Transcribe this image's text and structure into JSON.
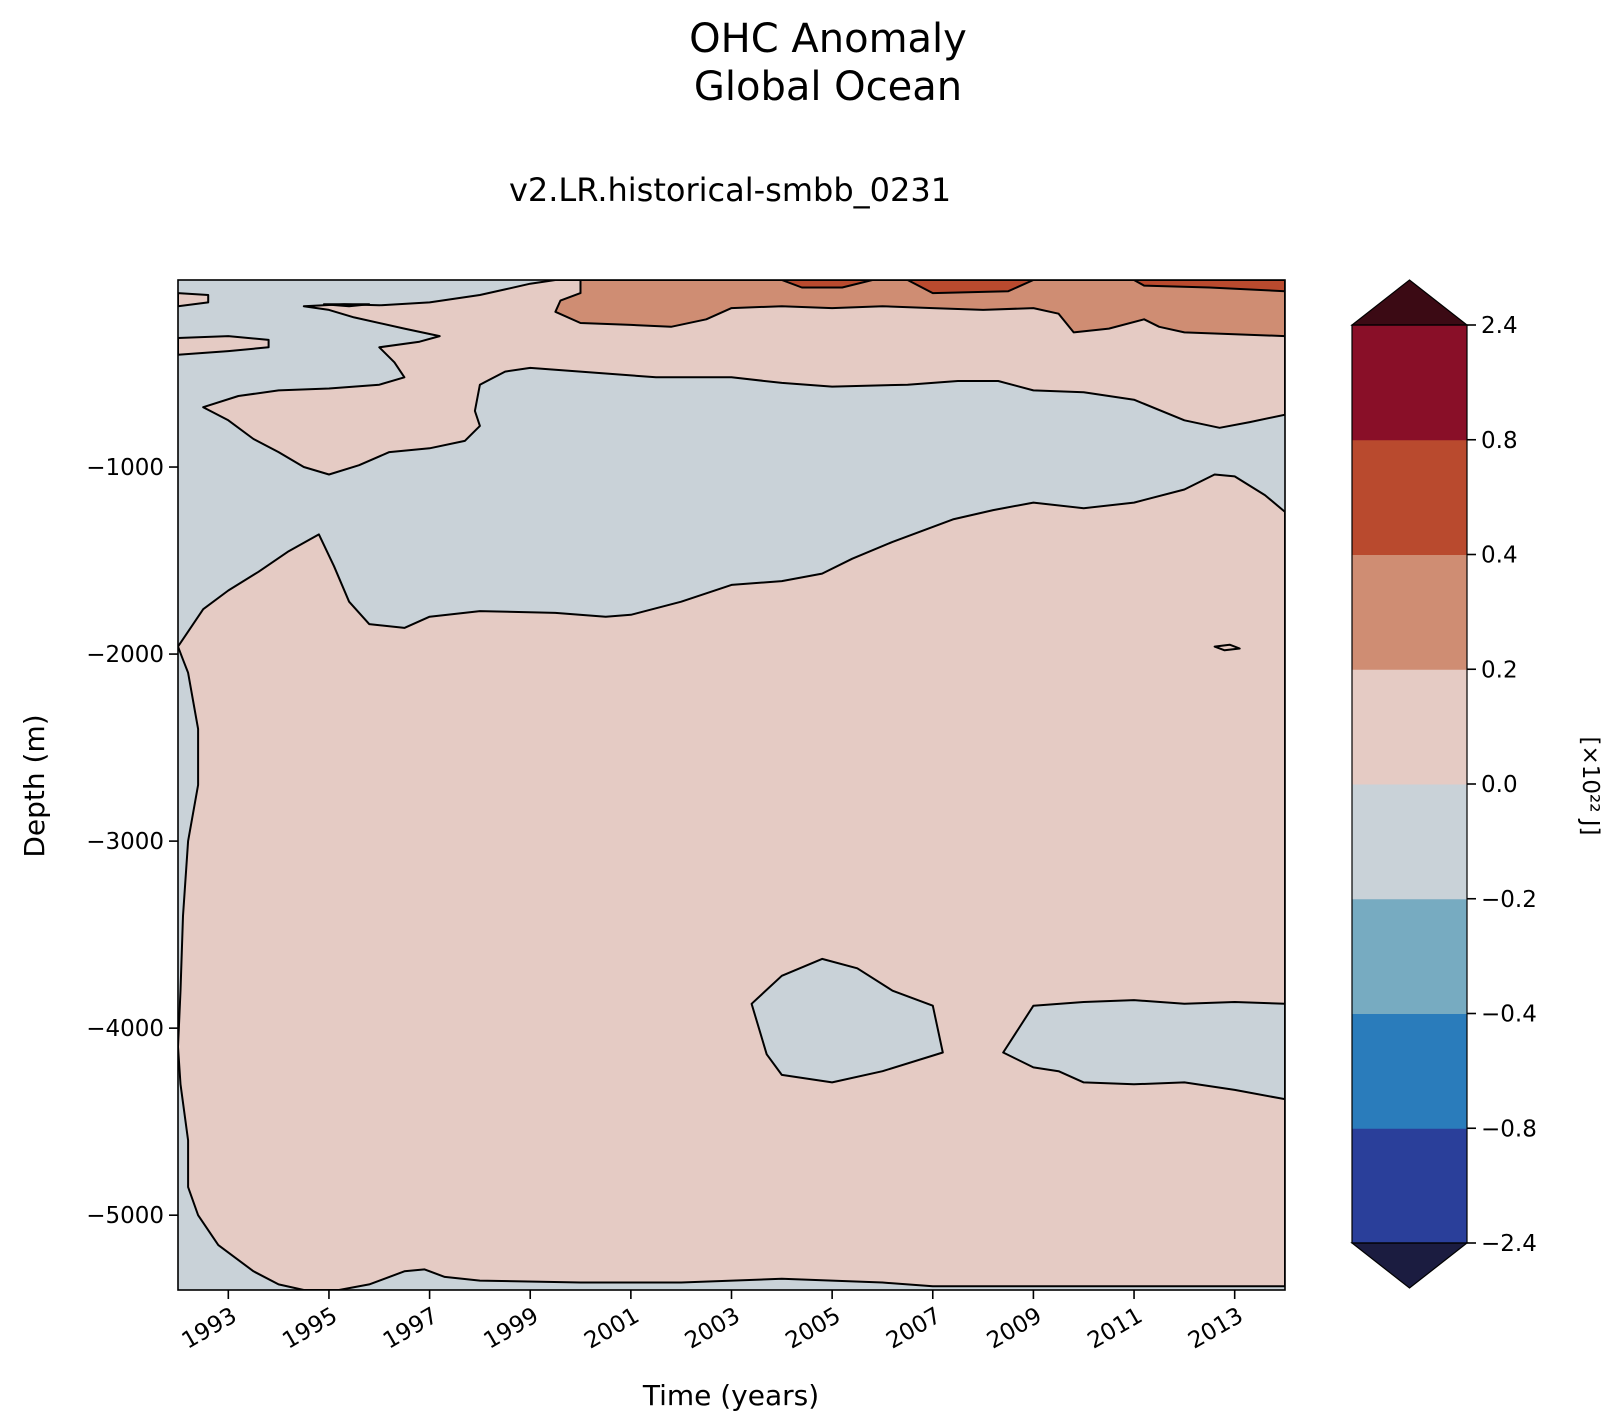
{
  "chart_data": {
    "type": "heatmap",
    "title": [
      "OHC Anomaly",
      "Global Ocean"
    ],
    "subtitle": "v2.LR.historical-smbb_0231",
    "xlabel": "Time (years)",
    "ylabel": "Depth (m)",
    "xlim": [
      1992.0,
      2014.0
    ],
    "ylim": [
      -5400,
      0
    ],
    "x_ticks": [
      1993,
      1995,
      1997,
      1999,
      2001,
      2003,
      2005,
      2007,
      2009,
      2011,
      2013
    ],
    "x_tick_labels": [
      "1993",
      "1995",
      "1997",
      "1999",
      "2001",
      "2003",
      "2005",
      "2007",
      "2009",
      "2011",
      "2013"
    ],
    "y_ticks": [
      -1000,
      -2000,
      -3000,
      -4000,
      -5000
    ],
    "y_tick_labels": [
      "−1000",
      "−2000",
      "−3000",
      "−4000",
      "−5000"
    ],
    "contour_levels": [
      -2.4,
      -0.8,
      -0.4,
      -0.2,
      0.0,
      0.2,
      0.4,
      0.8,
      2.4
    ],
    "colorbar": {
      "label": "[×10²² J]",
      "ticks": [
        -2.4,
        -0.8,
        -0.4,
        -0.2,
        0.0,
        0.2,
        0.4,
        0.8,
        2.4
      ],
      "tick_labels": [
        "−2.4",
        "−0.8",
        "−0.4",
        "−0.2",
        "0.0",
        "0.2",
        "0.4",
        "0.8",
        "2.4"
      ],
      "colors": [
        "#2a3f9a",
        "#2a7cbb",
        "#77abc1",
        "#c9d2d8",
        "#e5cbc4",
        "#cf8d73",
        "#b94a2e",
        "#890f28"
      ],
      "under_color": "#1b1c40",
      "over_color": "#3b0a14"
    },
    "regions": [
      {
        "band": "-0.2 to 0.0",
        "description": "background / shallow-left and mid-depth band",
        "polygon": [
          [
            1992.0,
            0
          ],
          [
            1992.0,
            -5400
          ],
          [
            2014.0,
            -5400
          ],
          [
            2014.0,
            0
          ]
        ]
      },
      {
        "band": "0.0 to 0.2",
        "description": "deep positive body",
        "polygon": [
          [
            1992.0,
            -1960
          ],
          [
            1992.1,
            -2030
          ],
          [
            1992.2,
            -2100
          ],
          [
            1992.4,
            -2400
          ],
          [
            1992.4,
            -2700
          ],
          [
            1992.2,
            -3000
          ],
          [
            1992.1,
            -3400
          ],
          [
            1992.05,
            -3800
          ],
          [
            1992.0,
            -4100
          ],
          [
            1992.05,
            -4300
          ],
          [
            1992.2,
            -4600
          ],
          [
            1992.2,
            -4850
          ],
          [
            1992.4,
            -5000
          ],
          [
            1992.8,
            -5160
          ],
          [
            1993.5,
            -5300
          ],
          [
            1994.0,
            -5370
          ],
          [
            1994.5,
            -5400
          ],
          [
            1995.2,
            -5400
          ],
          [
            1995.8,
            -5370
          ],
          [
            1996.5,
            -5300
          ],
          [
            1996.9,
            -5290
          ],
          [
            1997.3,
            -5330
          ],
          [
            1998.0,
            -5350
          ],
          [
            2000.0,
            -5360
          ],
          [
            2002.0,
            -5360
          ],
          [
            2004.0,
            -5340
          ],
          [
            2005.0,
            -5350
          ],
          [
            2006.0,
            -5360
          ],
          [
            2007.0,
            -5380
          ],
          [
            2014.0,
            -5380
          ],
          [
            2014.0,
            -1240
          ],
          [
            2013.6,
            -1150
          ],
          [
            2013.0,
            -1050
          ],
          [
            2012.6,
            -1040
          ],
          [
            2012.0,
            -1120
          ],
          [
            2011.0,
            -1190
          ],
          [
            2010.0,
            -1220
          ],
          [
            2009.0,
            -1190
          ],
          [
            2008.2,
            -1230
          ],
          [
            2007.4,
            -1280
          ],
          [
            2006.2,
            -1400
          ],
          [
            2005.4,
            -1490
          ],
          [
            2004.8,
            -1570
          ],
          [
            2004.0,
            -1610
          ],
          [
            2003.0,
            -1630
          ],
          [
            2002.0,
            -1720
          ],
          [
            2001.0,
            -1790
          ],
          [
            2000.5,
            -1800
          ],
          [
            1999.5,
            -1780
          ],
          [
            1998.0,
            -1770
          ],
          [
            1997.0,
            -1800
          ],
          [
            1996.5,
            -1860
          ],
          [
            1995.8,
            -1840
          ],
          [
            1995.4,
            -1720
          ],
          [
            1995.1,
            -1530
          ],
          [
            1994.8,
            -1360
          ],
          [
            1994.2,
            -1450
          ],
          [
            1993.6,
            -1560
          ],
          [
            1993.0,
            -1660
          ],
          [
            1992.5,
            -1760
          ],
          [
            1992.0,
            -1960
          ]
        ]
      },
      {
        "band": "-0.2 to 0.0",
        "description": "deep negative pocket around 2004",
        "polygon": [
          [
            2003.4,
            -3870
          ],
          [
            2004.0,
            -3720
          ],
          [
            2004.8,
            -3630
          ],
          [
            2005.5,
            -3680
          ],
          [
            2006.2,
            -3800
          ],
          [
            2007.0,
            -3880
          ],
          [
            2007.2,
            -4130
          ],
          [
            2006.0,
            -4230
          ],
          [
            2005.0,
            -4290
          ],
          [
            2004.0,
            -4250
          ],
          [
            2003.7,
            -4140
          ],
          [
            2003.4,
            -3870
          ]
        ]
      },
      {
        "band": "-0.2 to 0.0",
        "description": "deep negative pocket 2008-2014",
        "polygon": [
          [
            2008.4,
            -4130
          ],
          [
            2009.0,
            -3880
          ],
          [
            2010.0,
            -3860
          ],
          [
            2011.0,
            -3850
          ],
          [
            2012.0,
            -3870
          ],
          [
            2013.0,
            -3860
          ],
          [
            2014.0,
            -3870
          ],
          [
            2014.0,
            -4380
          ],
          [
            2013.0,
            -4330
          ],
          [
            2012.0,
            -4290
          ],
          [
            2011.0,
            -4300
          ],
          [
            2010.0,
            -4290
          ],
          [
            2009.5,
            -4230
          ],
          [
            2009.0,
            -4210
          ],
          [
            2008.4,
            -4130
          ]
        ]
      },
      {
        "band": "0.0 to 0.2",
        "description": "upper positive band",
        "polygon": [
          [
            1992.5,
            -680
          ],
          [
            1993.2,
            -620
          ],
          [
            1994.0,
            -590
          ],
          [
            1995.0,
            -580
          ],
          [
            1996.0,
            -560
          ],
          [
            1996.5,
            -520
          ],
          [
            1996.3,
            -440
          ],
          [
            1996.0,
            -360
          ],
          [
            1996.8,
            -330
          ],
          [
            1997.2,
            -300
          ],
          [
            1996.5,
            -260
          ],
          [
            1995.5,
            -200
          ],
          [
            1995.0,
            -160
          ],
          [
            1994.5,
            -140
          ],
          [
            1995.3,
            -130
          ],
          [
            1996.0,
            -135
          ],
          [
            1997.0,
            -120
          ],
          [
            1998.0,
            -80
          ],
          [
            1998.5,
            -50
          ],
          [
            1999.0,
            -20
          ],
          [
            1999.5,
            0
          ],
          [
            2014.0,
            0
          ],
          [
            2014.0,
            -720
          ],
          [
            2013.3,
            -760
          ],
          [
            2012.7,
            -790
          ],
          [
            2012.0,
            -750
          ],
          [
            2011.0,
            -640
          ],
          [
            2010.0,
            -600
          ],
          [
            2009.0,
            -590
          ],
          [
            2008.3,
            -540
          ],
          [
            2007.5,
            -540
          ],
          [
            2006.5,
            -560
          ],
          [
            2005.0,
            -570
          ],
          [
            2004.0,
            -550
          ],
          [
            2003.0,
            -520
          ],
          [
            2001.5,
            -520
          ],
          [
            2000.0,
            -490
          ],
          [
            1999.0,
            -470
          ],
          [
            1998.5,
            -490
          ],
          [
            1998.0,
            -560
          ],
          [
            1997.9,
            -700
          ],
          [
            1998.0,
            -780
          ],
          [
            1997.7,
            -860
          ],
          [
            1997.0,
            -900
          ],
          [
            1996.2,
            -920
          ],
          [
            1995.6,
            -990
          ],
          [
            1995.0,
            -1040
          ],
          [
            1994.5,
            -1000
          ],
          [
            1994.0,
            -920
          ],
          [
            1993.5,
            -850
          ],
          [
            1993.0,
            -750
          ],
          [
            1992.5,
            -680
          ]
        ]
      },
      {
        "band": "0.0 to 0.2",
        "description": "small upper-left patch",
        "polygon": [
          [
            1992.0,
            -310
          ],
          [
            1993.0,
            -300
          ],
          [
            1993.8,
            -320
          ],
          [
            1993.8,
            -360
          ],
          [
            1993.0,
            -380
          ],
          [
            1992.0,
            -400
          ]
        ]
      },
      {
        "band": "0.0 to 0.2",
        "description": "top-left sliver",
        "polygon": [
          [
            1992.0,
            -70
          ],
          [
            1992.6,
            -80
          ],
          [
            1992.6,
            -120
          ],
          [
            1992.0,
            -140
          ]
        ]
      },
      {
        "band": "0.0 to 0.2",
        "description": "small top patch 1995",
        "polygon": [
          [
            1994.9,
            -130
          ],
          [
            1995.4,
            -140
          ],
          [
            1995.8,
            -130
          ]
        ]
      },
      {
        "band": "0.2 to 0.4",
        "description": "near-surface warm band",
        "polygon": [
          [
            2000.0,
            0
          ],
          [
            2014.0,
            0
          ],
          [
            2014.0,
            -300
          ],
          [
            2013.0,
            -290
          ],
          [
            2012.0,
            -280
          ],
          [
            2011.5,
            -250
          ],
          [
            2011.2,
            -210
          ],
          [
            2010.5,
            -260
          ],
          [
            2009.8,
            -280
          ],
          [
            2009.5,
            -180
          ],
          [
            2009.0,
            -150
          ],
          [
            2008.0,
            -160
          ],
          [
            2007.0,
            -150
          ],
          [
            2006.0,
            -140
          ],
          [
            2005.0,
            -150
          ],
          [
            2004.0,
            -140
          ],
          [
            2003.0,
            -150
          ],
          [
            2002.5,
            -210
          ],
          [
            2001.8,
            -250
          ],
          [
            2001.0,
            -240
          ],
          [
            2000.0,
            -230
          ],
          [
            1999.5,
            -170
          ],
          [
            1999.6,
            -110
          ],
          [
            2000.0,
            -70
          ],
          [
            2000.0,
            0
          ]
        ]
      },
      {
        "band": "0.4 to 0.8",
        "description": "surface patch 2005",
        "polygon": [
          [
            2004.0,
            0
          ],
          [
            2005.8,
            0
          ],
          [
            2005.2,
            -40
          ],
          [
            2004.4,
            -40
          ]
        ]
      },
      {
        "band": "0.4 to 0.8",
        "description": "surface patch 2007-2009",
        "polygon": [
          [
            2006.5,
            0
          ],
          [
            2009.0,
            0
          ],
          [
            2008.5,
            -60
          ],
          [
            2007.0,
            -70
          ]
        ]
      },
      {
        "band": "0.4 to 0.8",
        "description": "surface patch 2011-2014",
        "polygon": [
          [
            2011.0,
            0
          ],
          [
            2014.0,
            0
          ],
          [
            2014.0,
            -60
          ],
          [
            2012.5,
            -40
          ],
          [
            2011.2,
            -30
          ]
        ]
      },
      {
        "band": "0.0 to 0.2",
        "description": "small patch at -1960 near 2012.8",
        "polygon": [
          [
            2012.6,
            -1960
          ],
          [
            2012.9,
            -1950
          ],
          [
            2013.1,
            -1970
          ],
          [
            2012.8,
            -1980
          ]
        ]
      }
    ]
  }
}
